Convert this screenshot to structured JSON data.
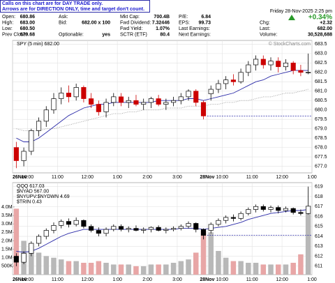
{
  "annotation": [
    "Calls on this chart are for DAY TRADE only.",
    "Arrows are for DIRECTION ONLY, time and target don't count."
  ],
  "header": {
    "columns": [
      [
        {
          "label": "Open:",
          "value": "680.86"
        },
        {
          "label": "High:",
          "value": "683.00"
        },
        {
          "label": "Low:",
          "value": "680.50"
        },
        {
          "label": "Prev Close:",
          "value": "679.68"
        }
      ],
      [
        {
          "label": "Ask:"
        },
        {
          "label": "Bid:",
          "value": "682.00 x 100"
        },
        null,
        {
          "label": "Optionable:",
          "value": "yes"
        }
      ],
      [
        {
          "label": "Mkt Cap:",
          "value": "700.4B"
        },
        {
          "label": "Fwd Dividend:",
          "value": "7.32446"
        },
        {
          "label": "Fwd Yield:",
          "value": "1.07%"
        },
        {
          "label": "SCTR (ETF)",
          "value": "80.4"
        }
      ],
      [
        {
          "label": "P/E:",
          "value": "6.84"
        },
        {
          "label": "EPS:",
          "value": "99.73"
        },
        {
          "label": "Last Earnings:"
        },
        {
          "label": "Next Earnings:"
        }
      ]
    ],
    "date": "Friday 28-Nov-2025 2:25 pm",
    "change_pct": "+0.34%",
    "right": [
      {
        "label": "Chg:",
        "value": "+2.32"
      },
      {
        "label": "Last:",
        "value": "682.00"
      },
      {
        "label": "Volume:",
        "value": "30,528,688"
      }
    ]
  },
  "chart_data": [
    {
      "type": "candlestick",
      "legend": [
        "SPY (5 min) 682.00"
      ],
      "watermark": "© StockCharts.com",
      "up_color": "#000000",
      "down_color": "#cc0000",
      "ma_color": "#2a2aa8",
      "ma2_color": "#999999",
      "ref_color": "#2a2aa8",
      "ylim": [
        676.65,
        683.7
      ],
      "yticks": [
        {
          "value": 677,
          "label": "677.0"
        },
        677.5,
        {
          "value": 678,
          "label": "678.0"
        },
        678.5,
        {
          "value": 679,
          "label": "679.0"
        },
        679.5,
        {
          "value": 680,
          "label": "680.0"
        },
        680.5,
        {
          "value": 681,
          "label": "681.0"
        },
        681.5,
        {
          "value": 682,
          "label": "682.0"
        },
        682.5,
        {
          "value": 683,
          "label": "683.0"
        },
        683.5
      ],
      "xlim": [
        0,
        40
      ],
      "xticks": [
        {
          "value": 0,
          "label": "26Nov"
        },
        {
          "value": 2,
          "label": "10:00"
        },
        {
          "value": 6,
          "label": "11:00"
        },
        {
          "value": 10,
          "label": "12:00"
        },
        {
          "value": 14,
          "label": "1:00"
        },
        {
          "value": 18,
          "label": "2:00"
        },
        {
          "value": 22,
          "label": "3:00"
        },
        {
          "value": 26,
          "label": "28Nov"
        },
        {
          "value": 28,
          "label": "10:00"
        },
        {
          "value": 32,
          "label": "11:00"
        },
        {
          "value": 36,
          "label": "12:00"
        },
        {
          "value": 40,
          "label": "1:00"
        }
      ],
      "series": [
        {
          "name": "SPY",
          "ohlc": [
            [
              678.0,
              678.3,
              676.9,
              677.3
            ],
            [
              677.3,
              678.0,
              677.0,
              677.8
            ],
            [
              677.8,
              679.0,
              677.6,
              678.9
            ],
            [
              678.9,
              679.6,
              678.6,
              679.4
            ],
            [
              679.4,
              680.2,
              679.1,
              680.0
            ],
            [
              680.0,
              680.9,
              679.8,
              680.6
            ],
            [
              680.6,
              681.2,
              680.3,
              680.9
            ],
            [
              680.9,
              681.3,
              680.4,
              680.7
            ],
            [
              680.7,
              681.4,
              680.5,
              681.2
            ],
            [
              681.2,
              681.3,
              680.4,
              680.6
            ],
            [
              680.6,
              680.9,
              680.1,
              680.3
            ],
            [
              680.3,
              680.5,
              679.7,
              679.9
            ],
            [
              679.9,
              680.6,
              679.6,
              680.4
            ],
            [
              680.4,
              680.9,
              680.2,
              680.7
            ],
            [
              680.7,
              680.9,
              680.2,
              680.4
            ],
            [
              680.4,
              680.7,
              680.1,
              680.5
            ],
            [
              680.5,
              680.8,
              680.2,
              680.3
            ],
            [
              680.3,
              680.6,
              680.0,
              680.4
            ],
            [
              680.4,
              680.7,
              680.1,
              680.6
            ],
            [
              680.6,
              680.8,
              680.2,
              680.3
            ],
            [
              680.3,
              680.6,
              680.0,
              680.4
            ],
            [
              680.4,
              680.7,
              680.2,
              680.5
            ],
            [
              680.5,
              680.9,
              680.3,
              680.7
            ],
            [
              680.7,
              681.1,
              680.5,
              681.0
            ],
            [
              681.0,
              681.1,
              680.2,
              680.4
            ],
            [
              680.4,
              680.5,
              679.5,
              679.68
            ],
            [
              680.86,
              681.3,
              680.5,
              681.1
            ],
            [
              681.1,
              681.6,
              680.9,
              681.4
            ],
            [
              681.4,
              681.8,
              681.1,
              681.6
            ],
            [
              681.6,
              681.9,
              681.3,
              681.5
            ],
            [
              681.5,
              682.2,
              681.4,
              682.0
            ],
            [
              682.0,
              682.6,
              681.8,
              682.4
            ],
            [
              682.4,
              682.9,
              682.1,
              682.7
            ],
            [
              682.7,
              682.9,
              682.2,
              682.4
            ],
            [
              682.4,
              682.8,
              682.1,
              682.6
            ],
            [
              682.6,
              682.8,
              682.0,
              682.3
            ],
            [
              682.3,
              682.7,
              682.1,
              682.5
            ],
            [
              682.5,
              682.6,
              681.9,
              682.1
            ],
            [
              682.1,
              682.4,
              681.8,
              682.0
            ],
            [
              682.0,
              683.0,
              681.9,
              682.0
            ]
          ],
          "ma": [
            678.5,
            678.3,
            678.3,
            678.5,
            678.8,
            679.1,
            679.4,
            679.7,
            679.9,
            680.1,
            680.2,
            680.3,
            680.3,
            680.4,
            680.4,
            680.4,
            680.4,
            680.4,
            680.4,
            680.5,
            680.5,
            680.5,
            680.5,
            680.6,
            680.6,
            680.5,
            680.6,
            680.7,
            680.8,
            680.9,
            681.1,
            681.3,
            681.5,
            681.6,
            681.8,
            681.9,
            682.0,
            682.1,
            682.1,
            682.1
          ],
          "ma2": [
            679.0,
            678.9,
            678.9,
            678.9,
            679.0,
            679.0,
            679.1,
            679.2,
            679.3,
            679.4,
            679.5,
            679.6,
            679.7,
            679.8,
            679.8,
            679.9,
            679.9,
            680.0,
            680.0,
            680.0,
            680.1,
            680.1,
            680.1,
            680.2,
            680.2,
            680.2,
            680.3,
            680.3,
            680.4,
            680.4,
            680.5,
            680.5,
            680.6,
            680.7,
            680.7,
            680.8,
            680.9,
            680.9,
            681.0,
            681.1
          ]
        }
      ]
    },
    {
      "type": "candlestick",
      "legend": [
        "QQQ 617.03",
        "$NYAD 567.00",
        "$NYUPV:$NYDWN 4.69",
        "$TRIN 0.43"
      ],
      "up_color": "#000000",
      "down_color": "#000000",
      "ma_color": "#2a2aa8",
      "ref_color": "#2a2aa8",
      "volume_up_color": "#b8b8b8",
      "volume_down_color": "#e8a6a6",
      "ylim": [
        610.15,
        619.4
      ],
      "yticks": [
        611,
        612,
        613,
        614,
        615,
        616,
        617,
        618,
        619
      ],
      "volume_ylim": [
        0,
        5440000
      ],
      "volume_yticks": [
        {
          "value": 500000,
          "label": "500K"
        },
        {
          "value": 1000000,
          "label": "1.0M"
        },
        {
          "value": 1500000,
          "label": "1.5M"
        },
        {
          "value": 2000000,
          "label": "2.0M"
        },
        {
          "value": 2500000,
          "label": "2.5M"
        },
        {
          "value": 3000000,
          "label": "3.0M"
        },
        {
          "value": 3500000,
          "label": "3.5M"
        },
        {
          "value": 4000000,
          "label": "4.0M"
        }
      ],
      "xlim": [
        0,
        40
      ],
      "xticks": [
        {
          "value": 0,
          "label": "26Nov"
        },
        {
          "value": 2,
          "label": "10:00"
        },
        {
          "value": 6,
          "label": "11:00"
        },
        {
          "value": 10,
          "label": "12:00"
        },
        {
          "value": 14,
          "label": "1:00"
        },
        {
          "value": 18,
          "label": "2:00"
        },
        {
          "value": 22,
          "label": "3:00"
        },
        {
          "value": 26,
          "label": "28Nov"
        },
        {
          "value": 28,
          "label": "10:00"
        },
        {
          "value": 32,
          "label": "11:00"
        },
        {
          "value": 36,
          "label": "12:00"
        },
        {
          "value": 40,
          "label": "1:00"
        }
      ],
      "series": [
        {
          "name": "QQQ",
          "ohlc": [
            [
              612.0,
              612.3,
              611.0,
              611.4
            ],
            [
              611.4,
              612.5,
              611.2,
              612.3
            ],
            [
              612.3,
              613.5,
              612.0,
              613.3
            ],
            [
              613.3,
              614.2,
              613.0,
              614.0
            ],
            [
              614.0,
              614.8,
              613.7,
              614.6
            ],
            [
              614.6,
              615.4,
              614.3,
              615.1
            ],
            [
              615.1,
              615.7,
              614.8,
              615.5
            ],
            [
              615.5,
              615.8,
              614.9,
              615.2
            ],
            [
              615.2,
              615.9,
              615.0,
              615.6
            ],
            [
              615.6,
              615.7,
              614.8,
              615.0
            ],
            [
              615.0,
              615.2,
              614.4,
              614.6
            ],
            [
              614.6,
              614.9,
              614.0,
              614.3
            ],
            [
              614.3,
              614.9,
              614.0,
              614.7
            ],
            [
              614.7,
              615.2,
              614.5,
              615.0
            ],
            [
              615.0,
              615.2,
              614.5,
              614.7
            ],
            [
              614.7,
              615.0,
              614.4,
              614.8
            ],
            [
              614.8,
              615.1,
              614.5,
              614.6
            ],
            [
              614.6,
              614.9,
              614.3,
              614.7
            ],
            [
              614.7,
              615.0,
              614.4,
              614.9
            ],
            [
              614.9,
              615.1,
              614.5,
              614.6
            ],
            [
              614.6,
              614.9,
              614.3,
              614.7
            ],
            [
              614.7,
              615.0,
              614.5,
              614.8
            ],
            [
              614.8,
              615.2,
              614.6,
              615.0
            ],
            [
              615.0,
              615.5,
              614.8,
              615.3
            ],
            [
              615.3,
              615.4,
              614.4,
              614.7
            ],
            [
              614.7,
              614.8,
              613.7,
              614.1
            ],
            [
              614.6,
              615.4,
              614.3,
              615.2
            ],
            [
              615.2,
              615.8,
              615.0,
              615.6
            ],
            [
              615.6,
              616.1,
              615.3,
              615.9
            ],
            [
              615.9,
              616.2,
              615.5,
              615.8
            ],
            [
              615.8,
              616.5,
              615.6,
              616.3
            ],
            [
              616.3,
              616.9,
              616.1,
              616.7
            ],
            [
              616.7,
              617.2,
              616.4,
              617.0
            ],
            [
              617.0,
              617.2,
              616.5,
              616.7
            ],
            [
              616.7,
              617.1,
              616.4,
              616.9
            ],
            [
              616.9,
              617.1,
              616.3,
              616.6
            ],
            [
              616.6,
              617.0,
              616.4,
              616.8
            ],
            [
              616.8,
              616.9,
              616.2,
              616.4
            ],
            [
              616.4,
              616.7,
              616.1,
              616.3
            ],
            [
              616.3,
              619.0,
              616.2,
              617.03
            ]
          ],
          "ma": [
            612.5,
            612.4,
            612.5,
            612.8,
            613.2,
            613.6,
            614.0,
            614.3,
            614.5,
            614.7,
            614.7,
            614.7,
            614.7,
            614.7,
            614.7,
            614.7,
            614.7,
            614.7,
            614.7,
            614.7,
            614.7,
            614.7,
            614.8,
            614.8,
            614.8,
            614.7,
            614.8,
            614.9,
            615.0,
            615.2,
            615.4,
            615.7,
            615.9,
            616.1,
            616.3,
            616.4,
            616.5,
            616.6,
            616.6,
            616.7
          ],
          "volume": [
            3900000,
            2000000,
            1600000,
            1300000,
            1100000,
            1000000,
            900000,
            800000,
            800000,
            700000,
            700000,
            800000,
            700000,
            600000,
            600000,
            600000,
            500000,
            500000,
            600000,
            600000,
            600000,
            700000,
            800000,
            900000,
            1300000,
            2600000,
            2500000,
            1400000,
            1000000,
            800000,
            800000,
            700000,
            700000,
            600000,
            600000,
            600000,
            600000,
            700000,
            1200000,
            3600000
          ]
        }
      ]
    }
  ]
}
